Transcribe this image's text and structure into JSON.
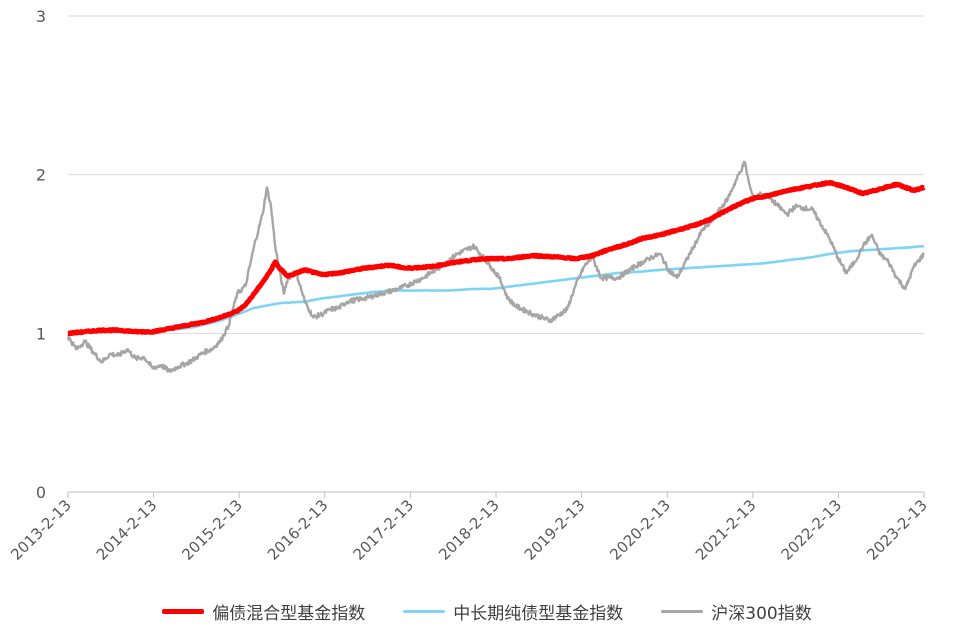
{
  "chart_data": {
    "type": "line",
    "title": "",
    "xlabel": "",
    "ylabel": "",
    "ylim": [
      0,
      3
    ],
    "y_ticks": [
      "0",
      "1",
      "2",
      "3"
    ],
    "x_ticks": [
      "2013-2-13",
      "2014-2-13",
      "2015-2-13",
      "2016-2-13",
      "2017-2-13",
      "2018-2-13",
      "2019-2-13",
      "2020-2-13",
      "2021-2-13",
      "2022-2-13",
      "2023-2-13"
    ],
    "grid": "horizontal",
    "legend_position": "bottom",
    "series": [
      {
        "name": "偏债混合型基金指数",
        "color": "#ff0000",
        "x": [
          2013.0,
          2013.2,
          2013.4,
          2013.6,
          2013.8,
          2014.0,
          2014.2,
          2014.4,
          2014.6,
          2014.8,
          2015.0,
          2015.1,
          2015.2,
          2015.3,
          2015.4,
          2015.45,
          2015.5,
          2015.6,
          2015.7,
          2015.8,
          2016.0,
          2016.2,
          2016.5,
          2016.8,
          2017.0,
          2017.3,
          2017.6,
          2017.9,
          2018.2,
          2018.5,
          2018.8,
          2019.0,
          2019.2,
          2019.4,
          2019.6,
          2019.8,
          2020.0,
          2020.2,
          2020.4,
          2020.6,
          2020.8,
          2021.0,
          2021.1,
          2021.3,
          2021.5,
          2021.7,
          2021.9,
          2022.0,
          2022.2,
          2022.4,
          2022.6,
          2022.8,
          2023.0,
          2023.12
        ],
        "values": [
          1.0,
          1.01,
          1.02,
          1.02,
          1.01,
          1.01,
          1.03,
          1.05,
          1.07,
          1.1,
          1.14,
          1.18,
          1.25,
          1.32,
          1.4,
          1.45,
          1.41,
          1.36,
          1.38,
          1.4,
          1.37,
          1.38,
          1.41,
          1.43,
          1.41,
          1.42,
          1.45,
          1.47,
          1.47,
          1.49,
          1.48,
          1.47,
          1.49,
          1.53,
          1.56,
          1.6,
          1.62,
          1.65,
          1.68,
          1.72,
          1.78,
          1.83,
          1.85,
          1.87,
          1.9,
          1.92,
          1.94,
          1.95,
          1.92,
          1.88,
          1.91,
          1.94,
          1.9,
          1.92
        ]
      },
      {
        "name": "中长期纯债型基金指数",
        "color": "#7fd3f5",
        "x": [
          2013.0,
          2013.3,
          2013.6,
          2013.9,
          2014.2,
          2014.5,
          2014.8,
          2015.0,
          2015.2,
          2015.5,
          2015.8,
          2016.0,
          2016.3,
          2016.6,
          2016.9,
          2017.2,
          2017.5,
          2017.8,
          2018.0,
          2018.3,
          2018.6,
          2018.9,
          2019.2,
          2019.5,
          2019.8,
          2020.0,
          2020.3,
          2020.6,
          2020.9,
          2021.2,
          2021.5,
          2021.8,
          2022.0,
          2022.3,
          2022.6,
          2022.9,
          2023.12
        ],
        "values": [
          1.0,
          1.02,
          1.01,
          1.0,
          1.02,
          1.04,
          1.08,
          1.12,
          1.16,
          1.19,
          1.2,
          1.22,
          1.24,
          1.26,
          1.27,
          1.27,
          1.27,
          1.28,
          1.28,
          1.3,
          1.32,
          1.34,
          1.36,
          1.38,
          1.39,
          1.4,
          1.41,
          1.42,
          1.43,
          1.44,
          1.46,
          1.48,
          1.5,
          1.52,
          1.53,
          1.54,
          1.55
        ]
      },
      {
        "name": "沪深300指数",
        "color": "#a6a6a6",
        "x": [
          2013.0,
          2013.1,
          2013.2,
          2013.3,
          2013.4,
          2013.5,
          2013.6,
          2013.7,
          2013.8,
          2013.9,
          2014.0,
          2014.1,
          2014.2,
          2014.3,
          2014.4,
          2014.5,
          2014.6,
          2014.7,
          2014.8,
          2014.9,
          2015.0,
          2015.1,
          2015.2,
          2015.3,
          2015.35,
          2015.4,
          2015.45,
          2015.5,
          2015.55,
          2015.6,
          2015.7,
          2015.8,
          2015.9,
          2016.0,
          2016.1,
          2016.2,
          2016.3,
          2016.5,
          2016.7,
          2016.9,
          2017.0,
          2017.2,
          2017.4,
          2017.6,
          2017.8,
          2018.0,
          2018.1,
          2018.2,
          2018.3,
          2018.5,
          2018.7,
          2018.9,
          2019.0,
          2019.1,
          2019.2,
          2019.3,
          2019.5,
          2019.7,
          2019.9,
          2020.0,
          2020.1,
          2020.2,
          2020.4,
          2020.5,
          2020.6,
          2020.8,
          2021.0,
          2021.05,
          2021.1,
          2021.2,
          2021.3,
          2021.4,
          2021.5,
          2021.6,
          2021.8,
          2022.0,
          2022.1,
          2022.2,
          2022.3,
          2022.4,
          2022.5,
          2022.6,
          2022.7,
          2022.8,
          2022.9,
          2023.0,
          2023.12
        ],
        "values": [
          0.98,
          0.9,
          0.95,
          0.88,
          0.82,
          0.87,
          0.86,
          0.9,
          0.84,
          0.85,
          0.78,
          0.8,
          0.76,
          0.79,
          0.81,
          0.84,
          0.88,
          0.9,
          0.95,
          1.05,
          1.25,
          1.3,
          1.55,
          1.75,
          1.92,
          1.8,
          1.55,
          1.4,
          1.25,
          1.35,
          1.38,
          1.2,
          1.1,
          1.12,
          1.15,
          1.16,
          1.2,
          1.22,
          1.25,
          1.28,
          1.3,
          1.35,
          1.42,
          1.5,
          1.55,
          1.42,
          1.35,
          1.22,
          1.17,
          1.12,
          1.08,
          1.15,
          1.3,
          1.42,
          1.48,
          1.35,
          1.35,
          1.42,
          1.48,
          1.5,
          1.4,
          1.35,
          1.55,
          1.65,
          1.7,
          1.85,
          2.08,
          1.95,
          1.85,
          1.88,
          1.85,
          1.8,
          1.75,
          1.8,
          1.78,
          1.6,
          1.48,
          1.38,
          1.45,
          1.55,
          1.62,
          1.5,
          1.45,
          1.35,
          1.28,
          1.42,
          1.5
        ]
      }
    ]
  }
}
